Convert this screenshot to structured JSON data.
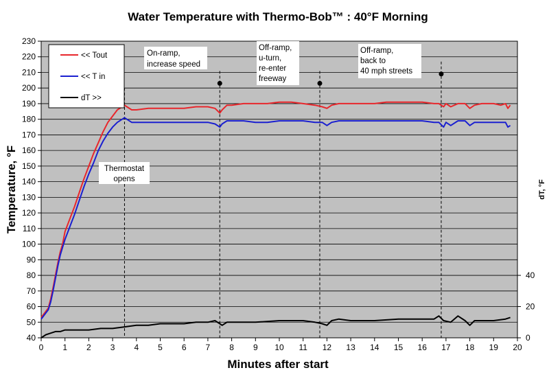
{
  "chart_data": {
    "type": "line",
    "title": "Water Temperature with Thermo-Bob™ :  40°F Morning",
    "xlabel": "Minutes after start",
    "ylabel": "Temperature, °F",
    "y2label": "dT, °F",
    "xlim": [
      0,
      20
    ],
    "ylim": [
      40,
      230
    ],
    "y2lim": [
      0,
      190
    ],
    "x_ticks": [
      0,
      1,
      2,
      3,
      4,
      5,
      6,
      7,
      8,
      9,
      10,
      11,
      12,
      13,
      14,
      15,
      16,
      17,
      18,
      19,
      20
    ],
    "y_ticks": [
      40,
      50,
      60,
      70,
      80,
      90,
      100,
      110,
      120,
      130,
      140,
      150,
      160,
      170,
      180,
      190,
      200,
      210,
      220,
      230
    ],
    "y2_ticks": [
      0,
      20,
      40
    ],
    "grid": "horizontal",
    "plot_background": "#c0c0c0",
    "legend_position": "top-left",
    "series": [
      {
        "name": "<< Tout",
        "axis": "left",
        "color": "#e8262b",
        "x": [
          0,
          0.1,
          0.2,
          0.3,
          0.4,
          0.5,
          0.6,
          0.7,
          0.8,
          0.9,
          1.0,
          1.2,
          1.4,
          1.6,
          1.8,
          2.0,
          2.2,
          2.4,
          2.6,
          2.8,
          3.0,
          3.2,
          3.4,
          3.5,
          3.6,
          3.8,
          4.0,
          4.5,
          5.0,
          5.5,
          6.0,
          6.5,
          7.0,
          7.3,
          7.5,
          7.6,
          7.8,
          8.0,
          8.5,
          9.0,
          9.5,
          10.0,
          10.5,
          11.0,
          11.5,
          11.8,
          12.0,
          12.2,
          12.5,
          13.0,
          13.5,
          14.0,
          14.5,
          15.0,
          15.5,
          16.0,
          16.5,
          16.7,
          16.9,
          17.0,
          17.2,
          17.5,
          17.8,
          18.0,
          18.2,
          18.5,
          19.0,
          19.3,
          19.5,
          19.6,
          19.7
        ],
        "y": [
          53,
          55,
          57,
          59,
          65,
          72,
          80,
          88,
          95,
          100,
          108,
          116,
          124,
          133,
          142,
          150,
          158,
          165,
          172,
          178,
          182,
          186,
          188,
          189,
          188,
          186,
          186,
          187,
          187,
          187,
          187,
          188,
          188,
          187,
          184,
          186,
          189,
          189,
          190,
          190,
          190,
          191,
          191,
          190,
          189,
          188,
          187,
          189,
          190,
          190,
          190,
          190,
          191,
          191,
          191,
          191,
          190,
          190,
          188,
          190,
          188,
          190,
          190,
          187,
          189,
          190,
          190,
          189,
          190,
          187,
          189
        ]
      },
      {
        "name": "<< T in",
        "axis": "left",
        "color": "#1a1fd0",
        "x": [
          0,
          0.1,
          0.2,
          0.3,
          0.4,
          0.5,
          0.6,
          0.7,
          0.8,
          0.9,
          1.0,
          1.2,
          1.4,
          1.6,
          1.8,
          2.0,
          2.2,
          2.4,
          2.6,
          2.8,
          3.0,
          3.2,
          3.4,
          3.5,
          3.6,
          3.8,
          4.0,
          4.5,
          5.0,
          5.5,
          6.0,
          6.5,
          7.0,
          7.3,
          7.5,
          7.6,
          7.8,
          8.0,
          8.5,
          9.0,
          9.5,
          10.0,
          10.5,
          11.0,
          11.5,
          11.8,
          12.0,
          12.2,
          12.5,
          13.0,
          13.5,
          14.0,
          14.5,
          15.0,
          15.5,
          16.0,
          16.5,
          16.7,
          16.9,
          17.0,
          17.2,
          17.5,
          17.8,
          18.0,
          18.2,
          18.5,
          19.0,
          19.3,
          19.5,
          19.6,
          19.7
        ],
        "y": [
          52,
          54,
          56,
          58,
          63,
          70,
          78,
          86,
          93,
          98,
          103,
          111,
          119,
          128,
          137,
          145,
          152,
          160,
          166,
          171,
          175,
          178,
          180,
          181,
          180,
          178,
          178,
          178,
          178,
          178,
          178,
          178,
          178,
          177,
          175,
          177,
          179,
          179,
          179,
          178,
          178,
          179,
          179,
          179,
          178,
          178,
          176,
          178,
          179,
          179,
          179,
          179,
          179,
          179,
          179,
          179,
          178,
          178,
          175,
          178,
          176,
          179,
          179,
          176,
          178,
          178,
          178,
          178,
          178,
          175,
          176
        ]
      },
      {
        "name": "dT >>",
        "axis": "right",
        "color": "#000000",
        "x": [
          0,
          0.2,
          0.4,
          0.6,
          0.8,
          1.0,
          1.5,
          2.0,
          2.5,
          3.0,
          3.5,
          4.0,
          4.5,
          5.0,
          5.5,
          6.0,
          6.5,
          7.0,
          7.3,
          7.5,
          7.6,
          7.8,
          8.0,
          9.0,
          10.0,
          11.0,
          11.5,
          11.8,
          12.0,
          12.2,
          12.5,
          13.0,
          14.0,
          15.0,
          16.0,
          16.5,
          16.7,
          16.9,
          17.2,
          17.5,
          17.8,
          18.0,
          18.2,
          18.5,
          19.0,
          19.5,
          19.7
        ],
        "y": [
          0,
          2,
          3,
          4,
          4,
          5,
          5,
          5,
          6,
          6,
          7,
          8,
          8,
          9,
          9,
          9,
          10,
          10,
          11,
          9,
          8,
          10,
          10,
          10,
          11,
          11,
          10,
          9,
          8,
          11,
          12,
          11,
          11,
          12,
          12,
          12,
          14,
          11,
          10,
          14,
          11,
          8,
          11,
          11,
          11,
          12,
          13
        ]
      }
    ],
    "annotations": [
      {
        "lines": [
          "Thermostat",
          "opens"
        ],
        "x": 3.5,
        "vline": true,
        "dot_y": null
      },
      {
        "lines": [
          "On-ramp,",
          "increase speed"
        ],
        "x": 7.5,
        "vline": true,
        "dot_y": 203
      },
      {
        "lines": [
          "Off-ramp,",
          "u-turn,",
          "re-enter",
          "freeway"
        ],
        "x": 11.7,
        "vline": true,
        "dot_y": 203
      },
      {
        "lines": [
          "Off-ramp,",
          "back to",
          "40 mph streets"
        ],
        "x": 16.8,
        "vline": true,
        "dot_y": 209
      }
    ]
  }
}
